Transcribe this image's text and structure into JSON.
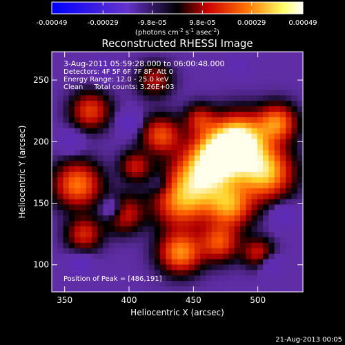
{
  "footer_timestamp": "21-Aug-2013 00:05",
  "colorbar": {
    "ticks": [
      "-0.00049",
      "-0.00029",
      "-9.8e-05",
      "9.8e-05",
      "0.00029",
      "0.00049"
    ],
    "tick_values": [
      -0.00049,
      -0.00029,
      -9.8e-05,
      9.8e-05,
      0.00029,
      0.00049
    ],
    "range": [
      -0.00049,
      0.00049
    ],
    "unit_prefix": "(photons cm",
    "unit_exp1": "-2",
    "unit_mid": " s",
    "unit_exp2": "-1",
    "unit_mid2": " asec",
    "unit_exp3": "-2",
    "unit_suffix": ")",
    "colors": [
      "#0000ff",
      "#6633cc",
      "#000000",
      "#cc0000",
      "#ff7700",
      "#ffff66",
      "#ffffff"
    ]
  },
  "chart_data": {
    "type": "heatmap",
    "title": "Reconstructed RHESSI Image",
    "xlabel": "Heliocentric X (arcsec)",
    "ylabel": "Heliocentric Y (arcsec)",
    "xlim": [
      340,
      535
    ],
    "ylim": [
      78,
      273
    ],
    "xticks": [
      350,
      400,
      450,
      500
    ],
    "yticks": [
      100,
      150,
      200,
      250
    ],
    "annotations": [
      "3-Aug-2011 05:59:28.000 to 06:00:48.000",
      "Detectors: 4F 5F 6F 7F 8F, Att 0",
      "Energy Range: 12.0 - 25.0 keV",
      "Clean     Total counts: 3.26E+03"
    ],
    "peak_label": "Position of Peak = [486,191]",
    "peak_position": [
      486,
      191
    ],
    "blobs": [
      {
        "x": 486,
        "y": 200,
        "v": 1.0,
        "s": 14
      },
      {
        "x": 470,
        "y": 188,
        "v": 0.9,
        "s": 14
      },
      {
        "x": 505,
        "y": 175,
        "v": 0.8,
        "s": 14
      },
      {
        "x": 455,
        "y": 170,
        "v": 0.7,
        "s": 15
      },
      {
        "x": 440,
        "y": 150,
        "v": 0.55,
        "s": 14
      },
      {
        "x": 478,
        "y": 148,
        "v": 0.65,
        "s": 12
      },
      {
        "x": 515,
        "y": 215,
        "v": 0.6,
        "s": 10
      },
      {
        "x": 425,
        "y": 205,
        "v": 0.5,
        "s": 10
      },
      {
        "x": 440,
        "y": 110,
        "v": 0.65,
        "s": 11
      },
      {
        "x": 470,
        "y": 118,
        "v": 0.5,
        "s": 10
      },
      {
        "x": 360,
        "y": 165,
        "v": 0.6,
        "s": 12
      },
      {
        "x": 395,
        "y": 142,
        "v": 0.45,
        "s": 10
      },
      {
        "x": 365,
        "y": 125,
        "v": 0.4,
        "s": 9
      },
      {
        "x": 370,
        "y": 225,
        "v": 0.45,
        "s": 10
      },
      {
        "x": 405,
        "y": 180,
        "v": 0.35,
        "s": 8
      },
      {
        "x": 420,
        "y": 250,
        "v": 0.3,
        "s": 9
      },
      {
        "x": 500,
        "y": 110,
        "v": 0.35,
        "s": 8
      },
      {
        "x": 455,
        "y": 218,
        "v": 0.35,
        "s": 8
      },
      {
        "x": 388,
        "y": 145,
        "v": -0.35,
        "s": 7
      },
      {
        "x": 362,
        "y": 100,
        "v": -0.25,
        "s": 6
      },
      {
        "x": 400,
        "y": 215,
        "v": -0.25,
        "s": 6
      },
      {
        "x": 355,
        "y": 200,
        "v": -0.2,
        "s": 6
      },
      {
        "x": 510,
        "y": 100,
        "v": -0.2,
        "s": 6
      },
      {
        "x": 520,
        "y": 140,
        "v": -0.2,
        "s": 7
      },
      {
        "x": 425,
        "y": 165,
        "v": -0.15,
        "s": 6
      },
      {
        "x": 380,
        "y": 260,
        "v": -0.2,
        "s": 6
      },
      {
        "x": 485,
        "y": 262,
        "v": -0.15,
        "s": 6
      }
    ]
  }
}
